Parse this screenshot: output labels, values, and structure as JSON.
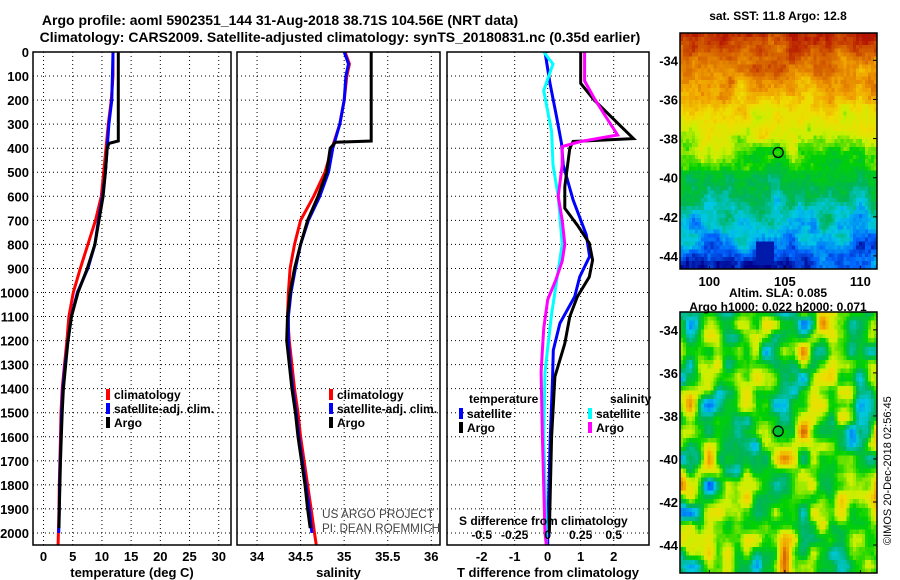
{
  "title": {
    "line1": "Argo profile: aoml 5902351_144 31-Aug-2018 38.71S 104.56E (NRT data)",
    "line2": "Climatology: CARS2009. Satellite-adjusted climatology: synTS_20180831.nc (0.35d earlier)"
  },
  "credits": {
    "line1": "US ARGO PROJECT",
    "line2": "PI: DEAN ROEMMICH"
  },
  "copyright": "©IMOS 20-Dec-2018 02:56:45",
  "chart_data": [
    {
      "id": "temperature",
      "type": "line",
      "xlabel": "temperature (deg C)",
      "ylabel": "",
      "xlim": [
        -1.8,
        32.1
      ],
      "ylim": [
        2050,
        0
      ],
      "xticks": [
        0,
        5,
        10,
        15,
        20,
        25,
        30
      ],
      "yticks": [
        0,
        100,
        200,
        300,
        400,
        500,
        600,
        700,
        800,
        900,
        1000,
        1100,
        1200,
        1300,
        1400,
        1500,
        1600,
        1700,
        1800,
        1900,
        2000
      ],
      "grid": true,
      "legend": [
        "climatology",
        "satellite-adj. clim.",
        "Argo"
      ],
      "legend_position": "lower-right",
      "series": [
        {
          "name": "climatology",
          "color": "#ff0000",
          "points": [
            [
              0,
              11.9
            ],
            [
              100,
              11.9
            ],
            [
              200,
              11.6
            ],
            [
              300,
              11.1
            ],
            [
              400,
              10.7
            ],
            [
              500,
              10.3
            ],
            [
              600,
              9.9
            ],
            [
              700,
              8.9
            ],
            [
              800,
              7.6
            ],
            [
              900,
              6.3
            ],
            [
              1000,
              5.1
            ],
            [
              1100,
              4.35
            ],
            [
              1200,
              4.0
            ],
            [
              1300,
              3.6
            ],
            [
              1400,
              3.2
            ],
            [
              1500,
              3.0
            ],
            [
              1600,
              2.9
            ],
            [
              1700,
              2.8
            ],
            [
              1800,
              2.7
            ],
            [
              1900,
              2.65
            ],
            [
              2000,
              2.55
            ],
            [
              2050,
              2.5
            ]
          ]
        },
        {
          "name": "satellite-adj. clim.",
          "color": "#0000ff",
          "points": [
            [
              0,
              11.9
            ],
            [
              200,
              11.7
            ],
            [
              300,
              11.2
            ],
            [
              400,
              10.9
            ],
            [
              500,
              10.6
            ],
            [
              600,
              10.1
            ],
            [
              700,
              9.4
            ],
            [
              800,
              8.8
            ],
            [
              900,
              7.6
            ],
            [
              1000,
              5.8
            ],
            [
              1100,
              4.75
            ],
            [
              1200,
              4.2
            ],
            [
              1300,
              3.7
            ],
            [
              1400,
              3.3
            ],
            [
              1500,
              3.1
            ],
            [
              1600,
              3.0
            ],
            [
              1700,
              2.85
            ],
            [
              1800,
              2.75
            ],
            [
              1900,
              2.7
            ],
            [
              2000,
              2.6
            ]
          ]
        },
        {
          "name": "Argo",
          "color": "#000000",
          "points": [
            [
              0,
              12.8
            ],
            [
              370,
              12.8
            ],
            [
              380,
              11.2
            ],
            [
              400,
              10.9
            ],
            [
              500,
              10.6
            ],
            [
              600,
              10.2
            ],
            [
              700,
              9.5
            ],
            [
              800,
              8.8
            ],
            [
              900,
              7.5
            ],
            [
              1000,
              5.9
            ],
            [
              1100,
              4.8
            ],
            [
              1200,
              4.2
            ],
            [
              1300,
              3.8
            ],
            [
              1400,
              3.4
            ],
            [
              1500,
              3.2
            ],
            [
              1600,
              3.05
            ],
            [
              1700,
              2.9
            ],
            [
              1800,
              2.8
            ],
            [
              1900,
              2.7
            ],
            [
              1980,
              2.65
            ]
          ]
        }
      ]
    },
    {
      "id": "salinity",
      "type": "line",
      "xlabel": "salinity",
      "xlim": [
        33.77,
        36.1
      ],
      "ylim": [
        2050,
        0
      ],
      "xticks": [
        34,
        34.5,
        35,
        35.5,
        36
      ],
      "yticks": [
        0,
        100,
        200,
        300,
        400,
        500,
        600,
        700,
        800,
        900,
        1000,
        1100,
        1200,
        1300,
        1400,
        1500,
        1600,
        1700,
        1800,
        1900,
        2000
      ],
      "grid": true,
      "legend": [
        "climatology",
        "satellite-adj. clim.",
        "Argo"
      ],
      "legend_position": "lower-right",
      "series": [
        {
          "name": "climatology",
          "color": "#ff0000",
          "points": [
            [
              0,
              35.01
            ],
            [
              50,
              35.06
            ],
            [
              100,
              35.03
            ],
            [
              200,
              35.0
            ],
            [
              300,
              34.95
            ],
            [
              400,
              34.86
            ],
            [
              500,
              34.78
            ],
            [
              600,
              34.65
            ],
            [
              700,
              34.5
            ],
            [
              800,
              34.43
            ],
            [
              900,
              34.38
            ],
            [
              1000,
              34.36
            ],
            [
              1100,
              34.35
            ],
            [
              1200,
              34.37
            ],
            [
              1300,
              34.4
            ],
            [
              1400,
              34.43
            ],
            [
              1500,
              34.47
            ],
            [
              1600,
              34.5
            ],
            [
              1700,
              34.54
            ],
            [
              1800,
              34.58
            ],
            [
              1900,
              34.62
            ],
            [
              2000,
              34.66
            ],
            [
              2050,
              34.68
            ]
          ]
        },
        {
          "name": "satellite-adj. clim.",
          "color": "#0000ff",
          "points": [
            [
              0,
              35.0
            ],
            [
              50,
              35.05
            ],
            [
              100,
              35.02
            ],
            [
              200,
              35.0
            ],
            [
              300,
              34.95
            ],
            [
              400,
              34.87
            ],
            [
              500,
              34.82
            ],
            [
              600,
              34.72
            ],
            [
              700,
              34.59
            ],
            [
              800,
              34.5
            ],
            [
              900,
              34.44
            ],
            [
              1000,
              34.39
            ],
            [
              1100,
              34.36
            ],
            [
              1200,
              34.36
            ],
            [
              1300,
              34.38
            ],
            [
              1400,
              34.41
            ],
            [
              1500,
              34.45
            ],
            [
              1600,
              34.48
            ],
            [
              1700,
              34.52
            ],
            [
              1800,
              34.56
            ],
            [
              1900,
              34.6
            ],
            [
              2000,
              34.63
            ]
          ]
        },
        {
          "name": "Argo",
          "color": "#000000",
          "points": [
            [
              0,
              35.31
            ],
            [
              370,
              35.31
            ],
            [
              375,
              34.9
            ],
            [
              400,
              34.84
            ],
            [
              500,
              34.8
            ],
            [
              600,
              34.7
            ],
            [
              700,
              34.58
            ],
            [
              800,
              34.5
            ],
            [
              900,
              34.43
            ],
            [
              1000,
              34.38
            ],
            [
              1100,
              34.35
            ],
            [
              1200,
              34.34
            ],
            [
              1300,
              34.37
            ],
            [
              1400,
              34.4
            ],
            [
              1500,
              34.44
            ],
            [
              1600,
              34.47
            ],
            [
              1700,
              34.51
            ],
            [
              1800,
              34.55
            ],
            [
              1900,
              34.58
            ],
            [
              1980,
              34.61
            ]
          ]
        }
      ]
    },
    {
      "id": "difference",
      "type": "line",
      "xlabel": "T difference from climatology",
      "s_axis_label": "S difference from climatology",
      "xlim": [
        -3.05,
        3.07
      ],
      "s_xlim": [
        -0.76,
        0.77
      ],
      "ylim": [
        2050,
        0
      ],
      "xticks": [
        -2,
        -1,
        0,
        1,
        2
      ],
      "s_xticks": [
        -0.5,
        -0.25,
        0,
        0.25,
        0.5
      ],
      "s_xtick_labels": [
        "-0.5",
        "-0.25",
        "0",
        "0.25",
        "0.5"
      ],
      "yticks": [
        0,
        100,
        200,
        300,
        400,
        500,
        600,
        700,
        800,
        900,
        1000,
        1100,
        1200,
        1300,
        1400,
        1500,
        1600,
        1700,
        1800,
        1900,
        2000
      ],
      "grid": true,
      "legend_groups": [
        {
          "title": "temperature",
          "items": [
            "satellite",
            "Argo"
          ]
        },
        {
          "title": "salinity",
          "items": [
            "satellite",
            "Argo"
          ]
        }
      ],
      "series": [
        {
          "name": "temperature satellite",
          "axis": "T",
          "color": "#0000ff",
          "points": [
            [
              0,
              -0.08
            ],
            [
              130,
              0.07
            ],
            [
              270,
              0.27
            ],
            [
              380,
              0.42
            ],
            [
              470,
              0.47
            ],
            [
              615,
              0.77
            ],
            [
              760,
              1.17
            ],
            [
              850,
              1.27
            ],
            [
              935,
              0.97
            ],
            [
              1017,
              0.82
            ],
            [
              1128,
              0.37
            ],
            [
              1240,
              0.17
            ],
            [
              1350,
              0.15
            ],
            [
              1600,
              0.08
            ],
            [
              2000,
              0.0
            ],
            [
              2050,
              0.0
            ]
          ]
        },
        {
          "name": "temperature Argo",
          "axis": "T",
          "color": "#000000",
          "points": [
            [
              0,
              1.0
            ],
            [
              130,
              1.0
            ],
            [
              200,
              1.41
            ],
            [
              300,
              2.15
            ],
            [
              360,
              2.6
            ],
            [
              372,
              0.77
            ],
            [
              400,
              0.67
            ],
            [
              560,
              0.52
            ],
            [
              650,
              0.52
            ],
            [
              720,
              0.9
            ],
            [
              795,
              1.26
            ],
            [
              865,
              1.36
            ],
            [
              935,
              1.26
            ],
            [
              1017,
              0.9
            ],
            [
              1100,
              0.67
            ],
            [
              1212,
              0.52
            ],
            [
              1350,
              0.22
            ],
            [
              1600,
              0.12
            ],
            [
              2000,
              0.05
            ]
          ]
        },
        {
          "name": "salinity satellite",
          "axis": "S",
          "color": "#00ffff",
          "points": [
            [
              0,
              -0.03
            ],
            [
              50,
              0.04
            ],
            [
              160,
              -0.03
            ],
            [
              330,
              0.03
            ],
            [
              470,
              0.04
            ],
            [
              600,
              0.08
            ],
            [
              800,
              0.11
            ],
            [
              870,
              0.09
            ],
            [
              980,
              0.06
            ],
            [
              1090,
              0.03
            ],
            [
              1230,
              0.0
            ],
            [
              1330,
              -0.02
            ],
            [
              1600,
              -0.03
            ],
            [
              2000,
              -0.01
            ],
            [
              2050,
              -0.01
            ]
          ]
        },
        {
          "name": "salinity Argo",
          "axis": "S",
          "color": "#ff00ff",
          "points": [
            [
              0,
              0.28
            ],
            [
              120,
              0.28
            ],
            [
              190,
              0.35
            ],
            [
              260,
              0.43
            ],
            [
              345,
              0.53
            ],
            [
              372,
              0.25
            ],
            [
              393,
              0.11
            ],
            [
              470,
              0.11
            ],
            [
              600,
              0.08
            ],
            [
              700,
              0.11
            ],
            [
              800,
              0.13
            ],
            [
              870,
              0.11
            ],
            [
              950,
              0.06
            ],
            [
              1030,
              0.0
            ],
            [
              1150,
              -0.03
            ],
            [
              1330,
              -0.05
            ],
            [
              1600,
              -0.04
            ],
            [
              2000,
              -0.02
            ],
            [
              2050,
              -0.01
            ]
          ]
        }
      ]
    },
    {
      "id": "sst-map",
      "type": "heatmap",
      "title": "sat. SST: 11.8 Argo: 12.8",
      "lon_lim": [
        98.06,
        111.1
      ],
      "lat_lim": [
        -32.6,
        -44.67
      ],
      "lon_ticks": [
        100,
        105,
        110
      ],
      "lat_ticks": [
        -34,
        -36,
        -38,
        -40,
        -42,
        -44
      ],
      "argo_position": {
        "lon": 104.56,
        "lat": -38.71
      },
      "colormap": [
        "#00008c",
        "#0064ff",
        "#00c8e6",
        "#00b45a",
        "#00d200",
        "#c8f000",
        "#f0dc00",
        "#f0a000",
        "#d25a00",
        "#b41400"
      ]
    },
    {
      "id": "sla-map",
      "type": "heatmap",
      "title": "Altim. SLA: 0.085",
      "subtitle": "Argo h1000: 0.022 h2000: 0.071",
      "lon_lim": [
        98.06,
        111.1
      ],
      "lat_lim": [
        -33.17,
        -45.3
      ],
      "lon_ticks": [
        100,
        105,
        110
      ],
      "lat_ticks": [
        -34,
        -36,
        -38,
        -40,
        -42,
        -44
      ],
      "argo_position": {
        "lon": 104.56,
        "lat": -38.71
      },
      "colormap": [
        "#00008c",
        "#0064ff",
        "#00c8e6",
        "#00b45a",
        "#00d200",
        "#c8f000",
        "#f0dc00",
        "#f0a000",
        "#d25a00",
        "#b41400"
      ]
    }
  ]
}
